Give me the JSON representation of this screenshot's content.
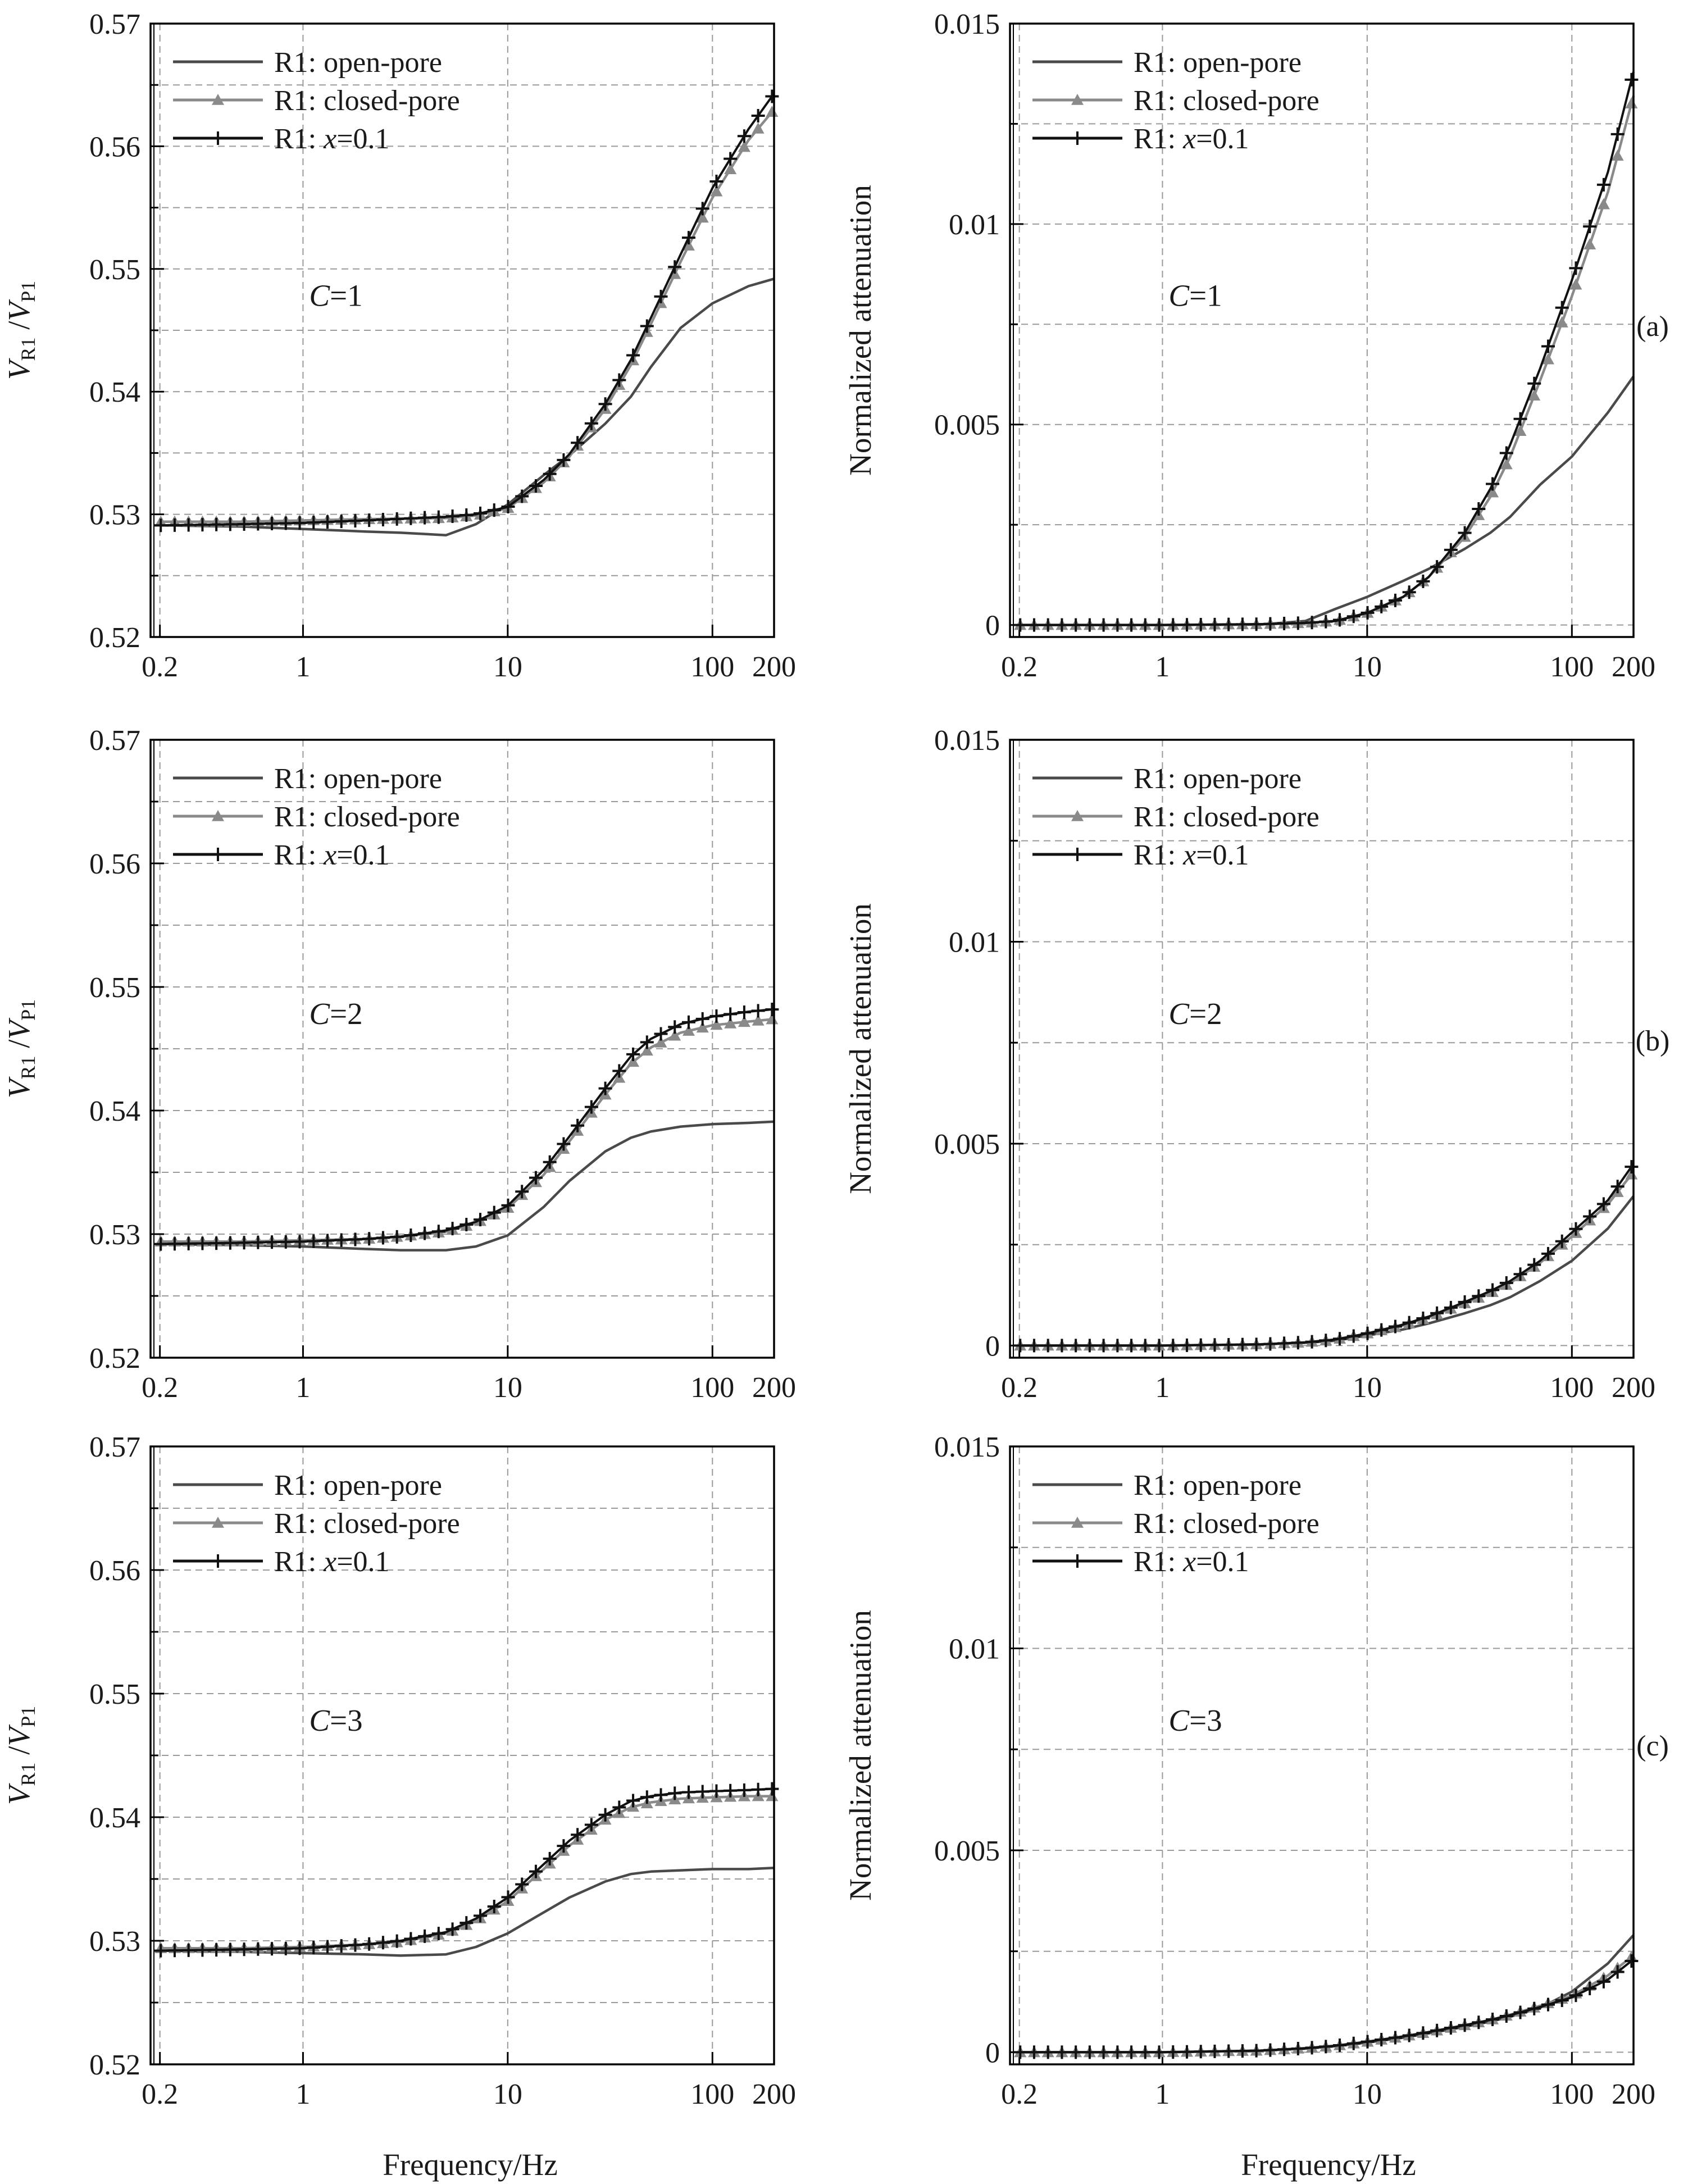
{
  "figure": {
    "xlabel": "Frequency/Hz",
    "panel_tags": [
      "(a)",
      "(b)",
      "(c)"
    ]
  },
  "legend_entries": [
    {
      "prefix": "R1: ",
      "italic": "",
      "suffix": "open-pore"
    },
    {
      "prefix": "R1: ",
      "italic": "",
      "suffix": "closed-pore"
    },
    {
      "prefix": "R1: ",
      "italic": "x",
      "suffix": "=0.1"
    }
  ],
  "colors": {
    "open_pore": "#4a4a4a",
    "closed_pore": "#8a8a8a",
    "x01": "#111111",
    "grid": "#9a9a9a",
    "axis": "#000000"
  },
  "chart_data": [
    {
      "type": "line",
      "panel": "a-left",
      "c_label": "C=1",
      "ylabel": "V_R1 / V_P1",
      "ylim": [
        0.52,
        0.57
      ],
      "yticks": [
        "0.52",
        "0.53",
        "0.54",
        "0.55",
        "0.56",
        "0.57"
      ],
      "xscale": "log",
      "xlim": [
        0.18,
        200
      ],
      "xticks": [
        0.2,
        1,
        10,
        100,
        200
      ],
      "xtick_labels": [
        "0.2",
        "1",
        "10",
        "100",
        "200"
      ],
      "grid": true,
      "legend": "top-left",
      "series": [
        {
          "name": "R1: open-pore",
          "x": [
            0.2,
            0.5,
            1,
            2,
            3,
            5,
            7,
            10,
            15,
            20,
            30,
            40,
            50,
            70,
            100,
            150,
            200
          ],
          "y": [
            0.5291,
            0.529,
            0.5288,
            0.5286,
            0.5285,
            0.5283,
            0.5292,
            0.5308,
            0.5332,
            0.5348,
            0.5374,
            0.5396,
            0.542,
            0.5452,
            0.5472,
            0.5486,
            0.5492
          ]
        },
        {
          "name": "R1: closed-pore",
          "x": [
            0.2,
            0.5,
            1,
            2,
            5,
            7,
            10,
            15,
            20,
            30,
            40,
            50,
            70,
            100,
            150,
            200
          ],
          "y": [
            0.5294,
            0.5294,
            0.5295,
            0.5296,
            0.5297,
            0.5299,
            0.5305,
            0.5326,
            0.5347,
            0.5386,
            0.5422,
            0.5455,
            0.5506,
            0.5558,
            0.5605,
            0.563
          ]
        },
        {
          "name": "R1: x=0.1",
          "x": [
            0.2,
            0.5,
            1,
            2,
            5,
            7,
            10,
            15,
            20,
            30,
            40,
            50,
            70,
            100,
            150,
            200
          ],
          "y": [
            0.5291,
            0.5292,
            0.5293,
            0.5295,
            0.5298,
            0.53,
            0.5306,
            0.5328,
            0.5349,
            0.539,
            0.5426,
            0.546,
            0.5512,
            0.5566,
            0.5614,
            0.5643
          ]
        }
      ]
    },
    {
      "type": "line",
      "panel": "a-right",
      "c_label": "C=1",
      "ylabel": "Normalized attenuation",
      "ylim": [
        -0.0003,
        0.015
      ],
      "yticks": [
        "0",
        "0.005",
        "0.01",
        "0.015"
      ],
      "xscale": "log",
      "xlim": [
        0.18,
        200
      ],
      "xticks": [
        0.2,
        1,
        10,
        100,
        200
      ],
      "xtick_labels": [
        "0.2",
        "1",
        "10",
        "100",
        "200"
      ],
      "grid": true,
      "legend": "top-left",
      "series": [
        {
          "name": "R1: open-pore",
          "x": [
            0.2,
            1,
            3,
            5,
            7,
            10,
            15,
            20,
            30,
            40,
            50,
            70,
            100,
            150,
            200
          ],
          "y": [
            0,
            0,
            1e-05,
            0.0001,
            0.0004,
            0.0007,
            0.0011,
            0.0014,
            0.0019,
            0.0023,
            0.0027,
            0.0035,
            0.0042,
            0.0053,
            0.0062
          ]
        },
        {
          "name": "R1: closed-pore",
          "x": [
            0.2,
            1,
            3,
            5,
            7,
            10,
            15,
            20,
            30,
            40,
            50,
            70,
            100,
            150,
            200
          ],
          "y": [
            0,
            0,
            2e-05,
            5e-05,
            0.0001,
            0.0003,
            0.0007,
            0.0012,
            0.0022,
            0.0032,
            0.0042,
            0.0061,
            0.0082,
            0.0108,
            0.0132
          ]
        },
        {
          "name": "R1: x=0.1",
          "x": [
            0.2,
            1,
            3,
            5,
            7,
            10,
            15,
            20,
            30,
            40,
            50,
            70,
            100,
            150,
            200
          ],
          "y": [
            0,
            0,
            2e-05,
            5e-05,
            0.0001,
            0.0003,
            0.0007,
            0.0012,
            0.0023,
            0.0034,
            0.0045,
            0.0064,
            0.0086,
            0.0113,
            0.0138
          ]
        }
      ]
    },
    {
      "type": "line",
      "panel": "b-left",
      "c_label": "C=2",
      "ylabel": "V_R1 / V_P1",
      "ylim": [
        0.52,
        0.57
      ],
      "yticks": [
        "0.52",
        "0.53",
        "0.54",
        "0.55",
        "0.56",
        "0.57"
      ],
      "xscale": "log",
      "xlim": [
        0.18,
        200
      ],
      "xticks": [
        0.2,
        1,
        10,
        100,
        200
      ],
      "xtick_labels": [
        "0.2",
        "1",
        "10",
        "100",
        "200"
      ],
      "grid": true,
      "legend": "top-left",
      "series": [
        {
          "name": "R1: open-pore",
          "x": [
            0.2,
            0.5,
            1,
            2,
            3,
            5,
            7,
            10,
            15,
            20,
            30,
            40,
            50,
            70,
            100,
            150,
            200
          ],
          "y": [
            0.5292,
            0.5291,
            0.529,
            0.5288,
            0.5287,
            0.5287,
            0.529,
            0.5299,
            0.5322,
            0.5343,
            0.5367,
            0.5378,
            0.5383,
            0.5387,
            0.5389,
            0.539,
            0.5391
          ]
        },
        {
          "name": "R1: closed-pore",
          "x": [
            0.2,
            0.5,
            1,
            2,
            3,
            5,
            7,
            10,
            15,
            20,
            30,
            40,
            50,
            70,
            100,
            150,
            200
          ],
          "y": [
            0.5294,
            0.5294,
            0.5295,
            0.5296,
            0.5298,
            0.5302,
            0.5309,
            0.5321,
            0.5348,
            0.5375,
            0.5413,
            0.5438,
            0.5451,
            0.5463,
            0.5469,
            0.5472,
            0.5474
          ]
        },
        {
          "name": "R1: x=0.1",
          "x": [
            0.2,
            0.5,
            1,
            2,
            3,
            5,
            7,
            10,
            15,
            20,
            30,
            40,
            50,
            70,
            100,
            150,
            200
          ],
          "y": [
            0.5292,
            0.5293,
            0.5294,
            0.5296,
            0.5298,
            0.5303,
            0.531,
            0.5323,
            0.5352,
            0.5379,
            0.5418,
            0.5444,
            0.5458,
            0.547,
            0.5476,
            0.548,
            0.5482
          ]
        }
      ]
    },
    {
      "type": "line",
      "panel": "b-right",
      "c_label": "C=2",
      "ylabel": "Normalized attenuation",
      "ylim": [
        -0.0003,
        0.015
      ],
      "yticks": [
        "0",
        "0.005",
        "0.01",
        "0.015"
      ],
      "xscale": "log",
      "xlim": [
        0.18,
        200
      ],
      "xticks": [
        0.2,
        1,
        10,
        100,
        200
      ],
      "xtick_labels": [
        "0.2",
        "1",
        "10",
        "100",
        "200"
      ],
      "grid": true,
      "legend": "top-left",
      "series": [
        {
          "name": "R1: open-pore",
          "x": [
            0.2,
            1,
            3,
            5,
            7,
            10,
            15,
            20,
            30,
            40,
            50,
            70,
            100,
            150,
            200
          ],
          "y": [
            0,
            0,
            3e-05,
            7e-05,
            0.00012,
            0.00025,
            0.0004,
            0.00055,
            0.0008,
            0.001,
            0.0012,
            0.0016,
            0.0021,
            0.0029,
            0.0037
          ]
        },
        {
          "name": "R1: closed-pore",
          "x": [
            0.2,
            1,
            3,
            5,
            7,
            10,
            15,
            20,
            30,
            40,
            50,
            70,
            100,
            150,
            200
          ],
          "y": [
            0,
            0,
            3e-05,
            8e-05,
            0.00015,
            0.0003,
            0.0005,
            0.0007,
            0.00105,
            0.0013,
            0.00155,
            0.00205,
            0.0027,
            0.0035,
            0.0043
          ]
        },
        {
          "name": "R1: x=0.1",
          "x": [
            0.2,
            1,
            3,
            5,
            7,
            10,
            15,
            20,
            30,
            40,
            50,
            70,
            100,
            150,
            200
          ],
          "y": [
            0,
            0,
            3e-05,
            8e-05,
            0.00015,
            0.0003,
            0.00052,
            0.00072,
            0.00108,
            0.00135,
            0.0016,
            0.0021,
            0.0028,
            0.0036,
            0.0045
          ]
        }
      ]
    },
    {
      "type": "line",
      "panel": "c-left",
      "c_label": "C=3",
      "ylabel": "V_R1 / V_P1",
      "ylim": [
        0.52,
        0.57
      ],
      "yticks": [
        "0.52",
        "0.53",
        "0.54",
        "0.55",
        "0.56",
        "0.57"
      ],
      "xscale": "log",
      "xlim": [
        0.18,
        200
      ],
      "xticks": [
        0.2,
        1,
        10,
        100,
        200
      ],
      "xtick_labels": [
        "0.2",
        "1",
        "10",
        "100",
        "200"
      ],
      "grid": true,
      "legend": "top-left",
      "series": [
        {
          "name": "R1: open-pore",
          "x": [
            0.2,
            0.5,
            1,
            2,
            3,
            5,
            7,
            10,
            15,
            20,
            30,
            40,
            50,
            70,
            100,
            150,
            200
          ],
          "y": [
            0.5292,
            0.5291,
            0.529,
            0.5289,
            0.5288,
            0.5289,
            0.5295,
            0.5306,
            0.5323,
            0.5335,
            0.5348,
            0.5354,
            0.5356,
            0.5357,
            0.5358,
            0.5358,
            0.5359
          ]
        },
        {
          "name": "R1: closed-pore",
          "x": [
            0.2,
            0.5,
            1,
            2,
            3,
            5,
            7,
            10,
            15,
            20,
            30,
            40,
            50,
            70,
            100,
            150,
            200
          ],
          "y": [
            0.5294,
            0.5294,
            0.5295,
            0.5297,
            0.5299,
            0.5306,
            0.5316,
            0.5332,
            0.5358,
            0.5377,
            0.5398,
            0.5408,
            0.5412,
            0.5415,
            0.5416,
            0.5417,
            0.5417
          ]
        },
        {
          "name": "R1: x=0.1",
          "x": [
            0.2,
            0.5,
            1,
            2,
            3,
            5,
            7,
            10,
            15,
            20,
            30,
            40,
            50,
            70,
            100,
            150,
            200
          ],
          "y": [
            0.5292,
            0.5293,
            0.5294,
            0.5297,
            0.53,
            0.5307,
            0.5318,
            0.5335,
            0.5362,
            0.5381,
            0.5402,
            0.5413,
            0.5417,
            0.542,
            0.5421,
            0.5422,
            0.5423
          ]
        }
      ]
    },
    {
      "type": "line",
      "panel": "c-right",
      "c_label": "C=3",
      "ylabel": "Normalized attenuation",
      "ylim": [
        -0.0003,
        0.015
      ],
      "yticks": [
        "0",
        "0.005",
        "0.01",
        "0.015"
      ],
      "xscale": "log",
      "xlim": [
        0.18,
        200
      ],
      "xticks": [
        0.2,
        1,
        10,
        100,
        200
      ],
      "xtick_labels": [
        "0.2",
        "1",
        "10",
        "100",
        "200"
      ],
      "grid": true,
      "legend": "top-left",
      "series": [
        {
          "name": "R1: open-pore",
          "x": [
            0.2,
            1,
            3,
            5,
            7,
            10,
            15,
            20,
            30,
            40,
            50,
            70,
            100,
            150,
            200
          ],
          "y": [
            0,
            0,
            4e-05,
            9e-05,
            0.00015,
            0.00024,
            0.00036,
            0.00047,
            0.00063,
            0.00076,
            0.00088,
            0.0011,
            0.0015,
            0.0022,
            0.0029
          ]
        },
        {
          "name": "R1: closed-pore",
          "x": [
            0.2,
            1,
            3,
            5,
            7,
            10,
            15,
            20,
            30,
            40,
            50,
            70,
            100,
            150,
            200
          ],
          "y": [
            0,
            0,
            4e-05,
            0.0001,
            0.00016,
            0.00026,
            0.00039,
            0.0005,
            0.00067,
            0.0008,
            0.00093,
            0.00115,
            0.0014,
            0.0019,
            0.0024
          ]
        },
        {
          "name": "R1: x=0.1",
          "x": [
            0.2,
            1,
            3,
            5,
            7,
            10,
            15,
            20,
            30,
            40,
            50,
            70,
            100,
            150,
            200
          ],
          "y": [
            0,
            0,
            4e-05,
            0.0001,
            0.00016,
            0.00026,
            0.00039,
            0.0005,
            0.00067,
            0.0008,
            0.00092,
            0.00112,
            0.00136,
            0.0018,
            0.0023
          ]
        }
      ]
    }
  ]
}
